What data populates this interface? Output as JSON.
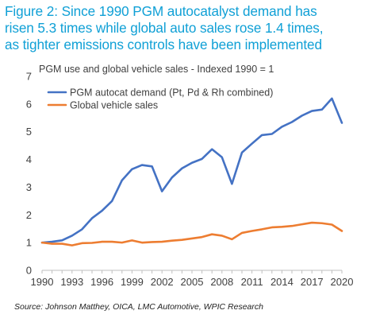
{
  "title_lines": [
    "Figure 2: Since 1990 PGM autocatalyst demand has",
    "risen 5.3 times while global auto sales rose 1.4 times,",
    "as tighter emissions controls have been implemented"
  ],
  "source": "Source: Johnson Matthey, OICA, LMC Automotive, WPIC Research",
  "chart_data": {
    "type": "line",
    "subtitle": "PGM use and global vehicle sales - Indexed 1990 = 1",
    "xlabel": "",
    "ylabel": "",
    "x": [
      1990,
      1991,
      1992,
      1993,
      1994,
      1995,
      1996,
      1997,
      1998,
      1999,
      2000,
      2001,
      2002,
      2003,
      2004,
      2005,
      2006,
      2007,
      2008,
      2009,
      2010,
      2011,
      2012,
      2013,
      2014,
      2015,
      2016,
      2017,
      2018,
      2019,
      2020
    ],
    "xticks": [
      "1990",
      "1993",
      "1996",
      "1999",
      "2002",
      "2005",
      "2008",
      "2011",
      "2014",
      "2017",
      "2020"
    ],
    "xlim": [
      1990,
      2020
    ],
    "ylim": [
      0,
      7
    ],
    "yticks": [
      "0",
      "1",
      "2",
      "3",
      "4",
      "5",
      "6",
      "7"
    ],
    "grid": false,
    "legend_position": "top-left",
    "series": [
      {
        "name": "PGM autocat demand (Pt, Pd & Rh combined)",
        "color": "#4472c4",
        "values": [
          1.0,
          1.03,
          1.08,
          1.25,
          1.48,
          1.88,
          2.15,
          2.5,
          3.25,
          3.65,
          3.8,
          3.75,
          2.85,
          3.35,
          3.68,
          3.88,
          4.02,
          4.37,
          4.08,
          3.12,
          4.25,
          4.57,
          4.88,
          4.92,
          5.18,
          5.35,
          5.58,
          5.75,
          5.8,
          6.2,
          5.32
        ]
      },
      {
        "name": "Global vehicle sales",
        "color": "#ed7d31",
        "values": [
          1.0,
          0.96,
          0.96,
          0.9,
          0.98,
          0.99,
          1.03,
          1.03,
          1.0,
          1.08,
          1.0,
          1.02,
          1.03,
          1.07,
          1.1,
          1.15,
          1.2,
          1.3,
          1.25,
          1.12,
          1.35,
          1.42,
          1.48,
          1.55,
          1.57,
          1.6,
          1.66,
          1.72,
          1.7,
          1.65,
          1.42
        ]
      }
    ]
  }
}
